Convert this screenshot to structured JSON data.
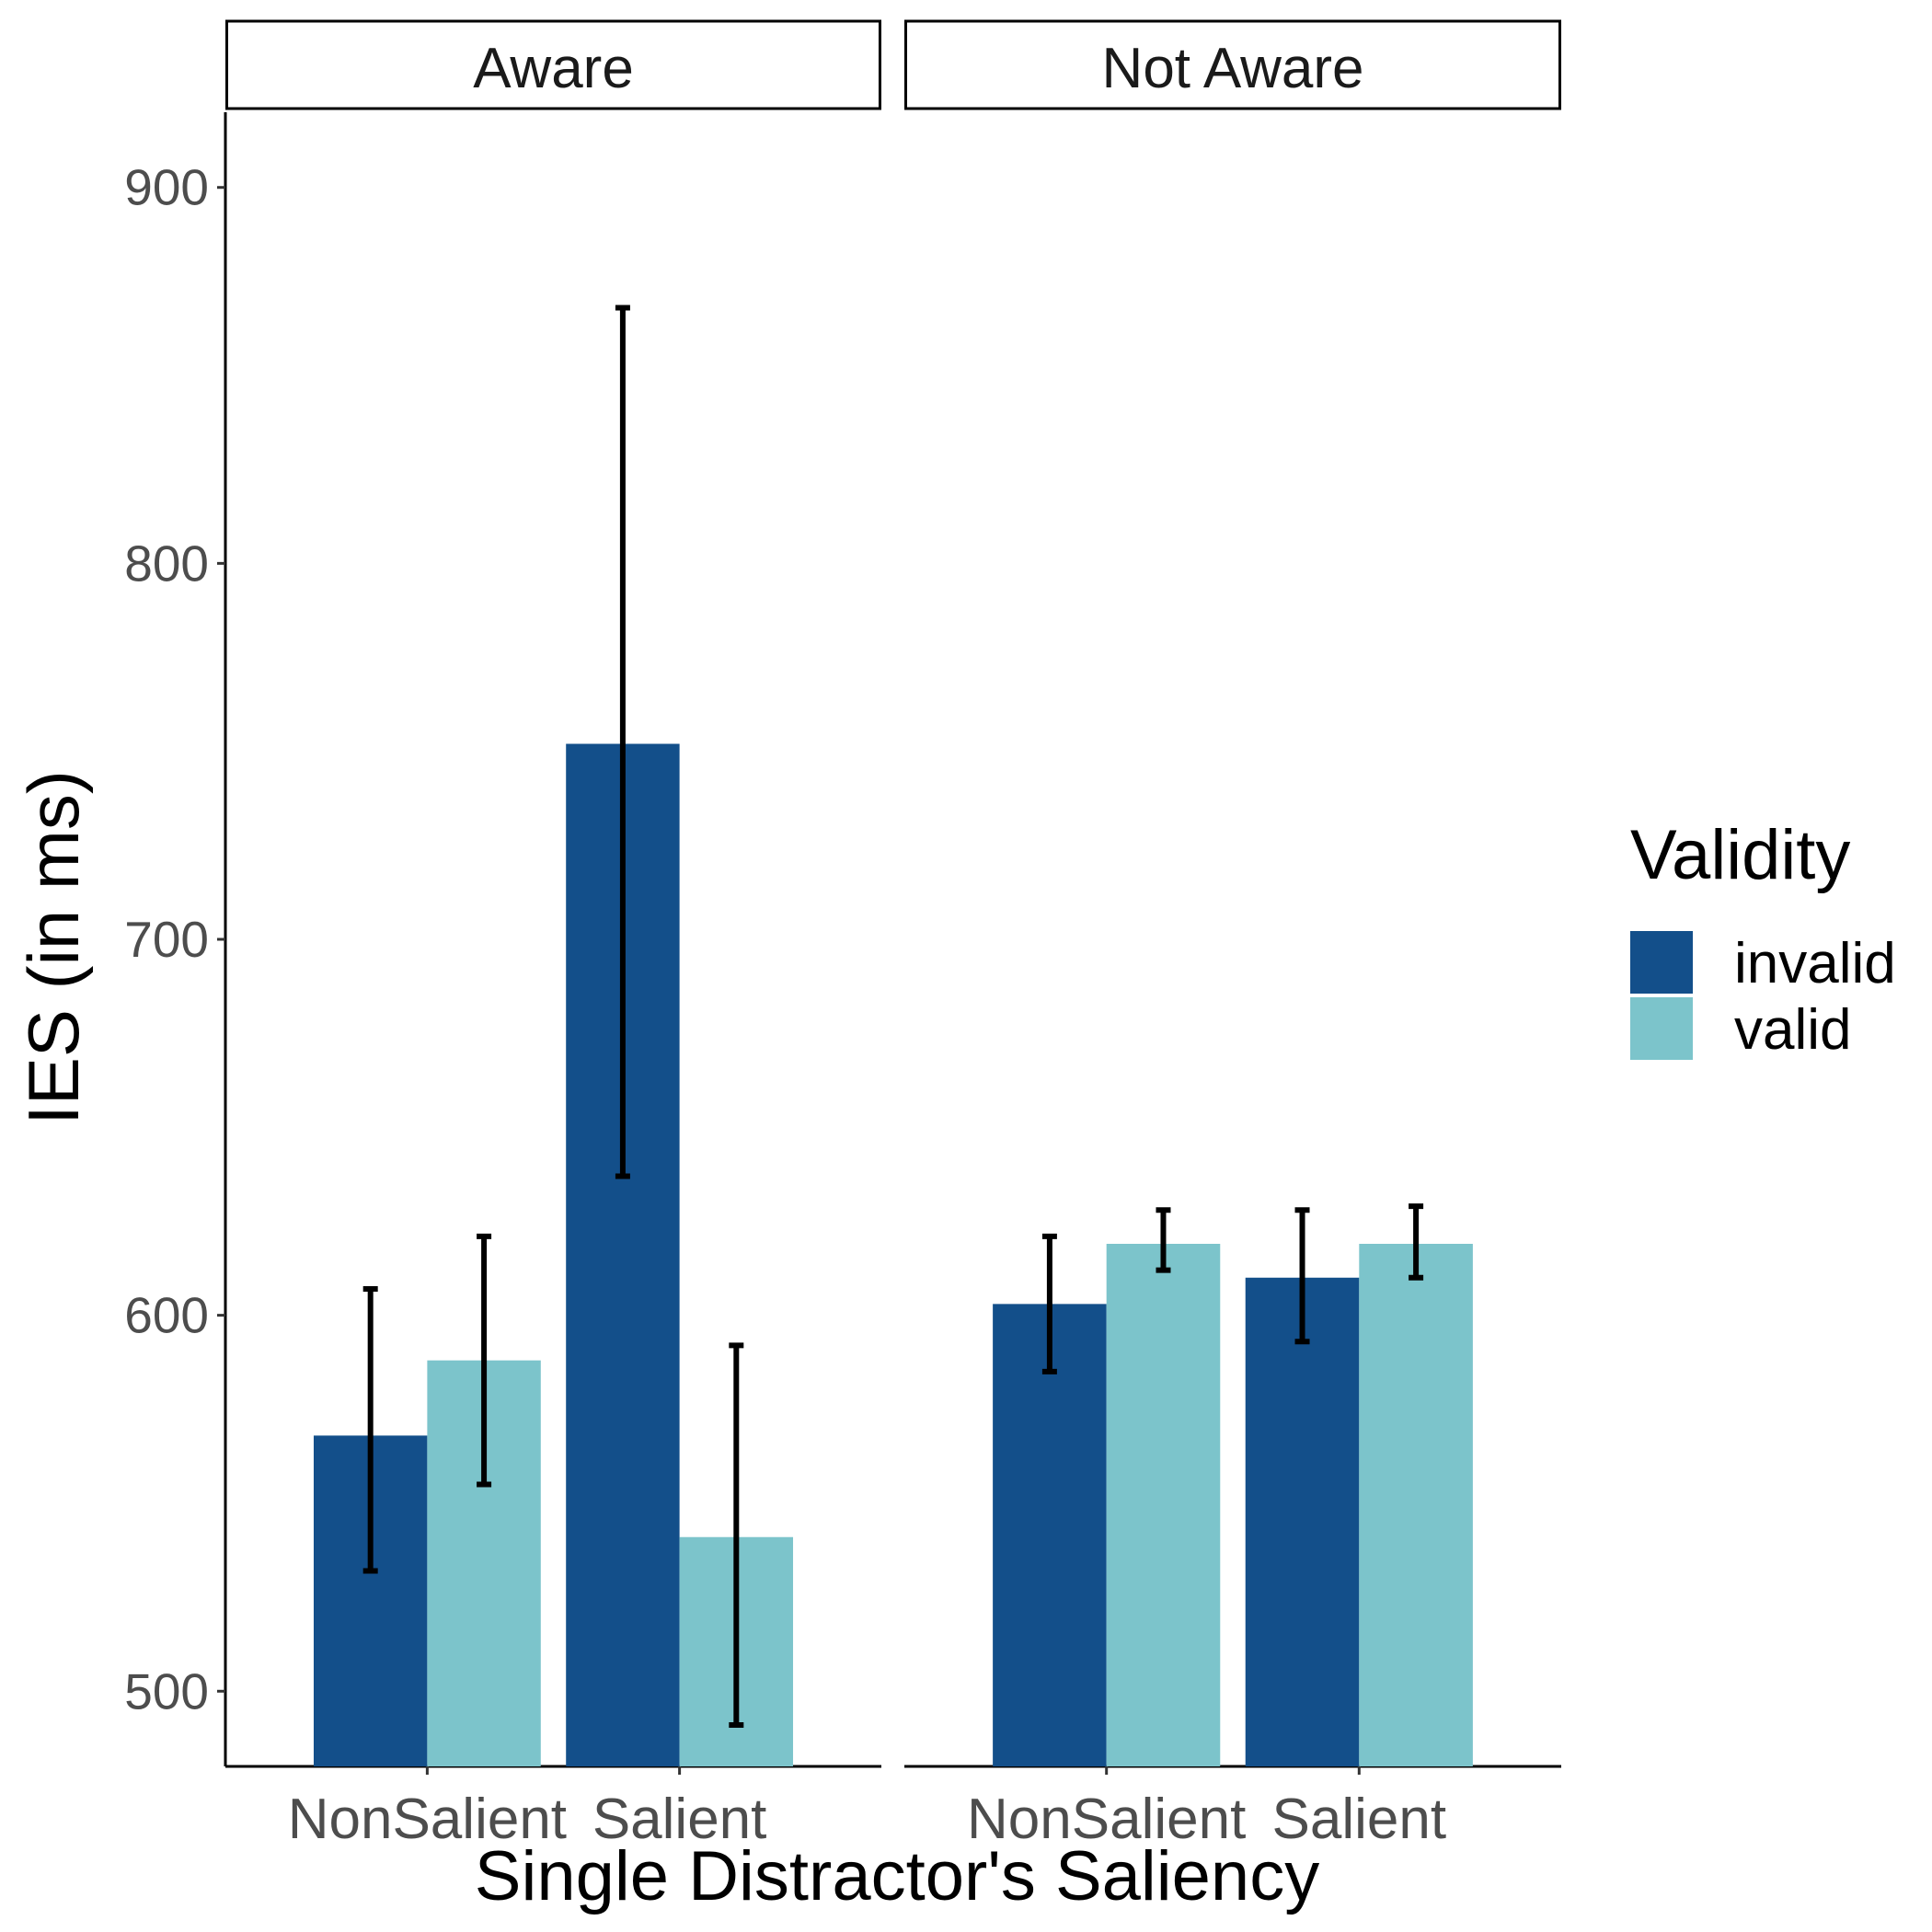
{
  "chart_data": {
    "type": "bar",
    "facets": [
      "Aware",
      "Not Aware"
    ],
    "categories": [
      "NonSalient",
      "Salient"
    ],
    "xlabel": "Single Distractor's Saliency",
    "ylabel": "IES (in ms)",
    "ylim": [
      480,
      920
    ],
    "yticks": [
      500,
      600,
      700,
      800,
      900
    ],
    "grid": false,
    "legend": {
      "title": "Validity",
      "position": "right"
    },
    "series": [
      {
        "name": "invalid",
        "color": "#134f8a",
        "values": {
          "Aware": [
            568,
            752
          ],
          "Not Aware": [
            603,
            610
          ]
        },
        "error": {
          "Aware": [
            [
              532,
              607
            ],
            [
              637,
              868
            ]
          ],
          "Not Aware": [
            [
              585,
              621
            ],
            [
              593,
              628
            ]
          ]
        }
      },
      {
        "name": "valid",
        "color": "#7cc4cb",
        "values": {
          "Aware": [
            588,
            541
          ],
          "Not Aware": [
            619,
            619
          ]
        },
        "error": {
          "Aware": [
            [
              555,
              621
            ],
            [
              491,
              592
            ]
          ],
          "Not Aware": [
            [
              612,
              628
            ],
            [
              610,
              629
            ]
          ]
        }
      }
    ]
  }
}
